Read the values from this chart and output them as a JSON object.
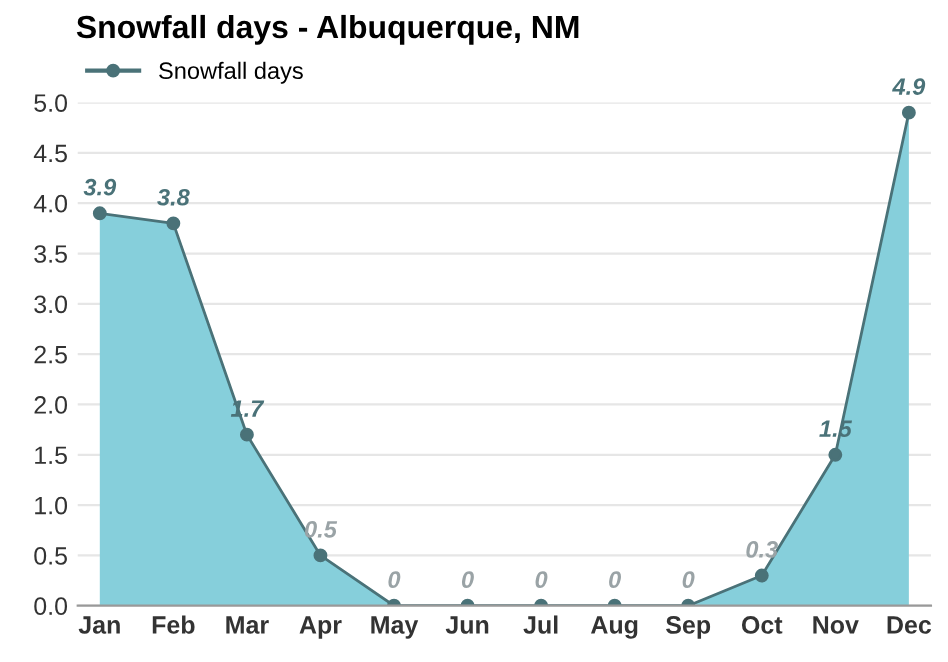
{
  "chart_data": {
    "type": "area",
    "title": "Snowfall days - Albuquerque, NM",
    "categories": [
      "Jan",
      "Feb",
      "Mar",
      "Apr",
      "May",
      "Jun",
      "Jul",
      "Aug",
      "Sep",
      "Oct",
      "Nov",
      "Dec"
    ],
    "series": [
      {
        "name": "Snowfall days",
        "color": "#86cfdb",
        "values": [
          3.9,
          3.8,
          1.7,
          0.5,
          0,
          0,
          0,
          0,
          0,
          0.3,
          1.5,
          4.9
        ]
      }
    ],
    "ylim": [
      0,
      5
    ],
    "yticks": [
      {
        "value": 0,
        "label": "0.0"
      },
      {
        "value": 0.5,
        "label": "0.5"
      },
      {
        "value": 1,
        "label": "1.0"
      },
      {
        "value": 1.5,
        "label": "1.5"
      },
      {
        "value": 2,
        "label": "2.0"
      },
      {
        "value": 2.5,
        "label": "2.5"
      },
      {
        "value": 3,
        "label": "3.0"
      },
      {
        "value": 3.5,
        "label": "3.5"
      },
      {
        "value": 4,
        "label": "4.0"
      },
      {
        "value": 4.5,
        "label": "4.5"
      },
      {
        "value": 5,
        "label": "5.0"
      }
    ],
    "grid": "y",
    "legend": "top left",
    "marker": "circle",
    "data_labels": true
  }
}
